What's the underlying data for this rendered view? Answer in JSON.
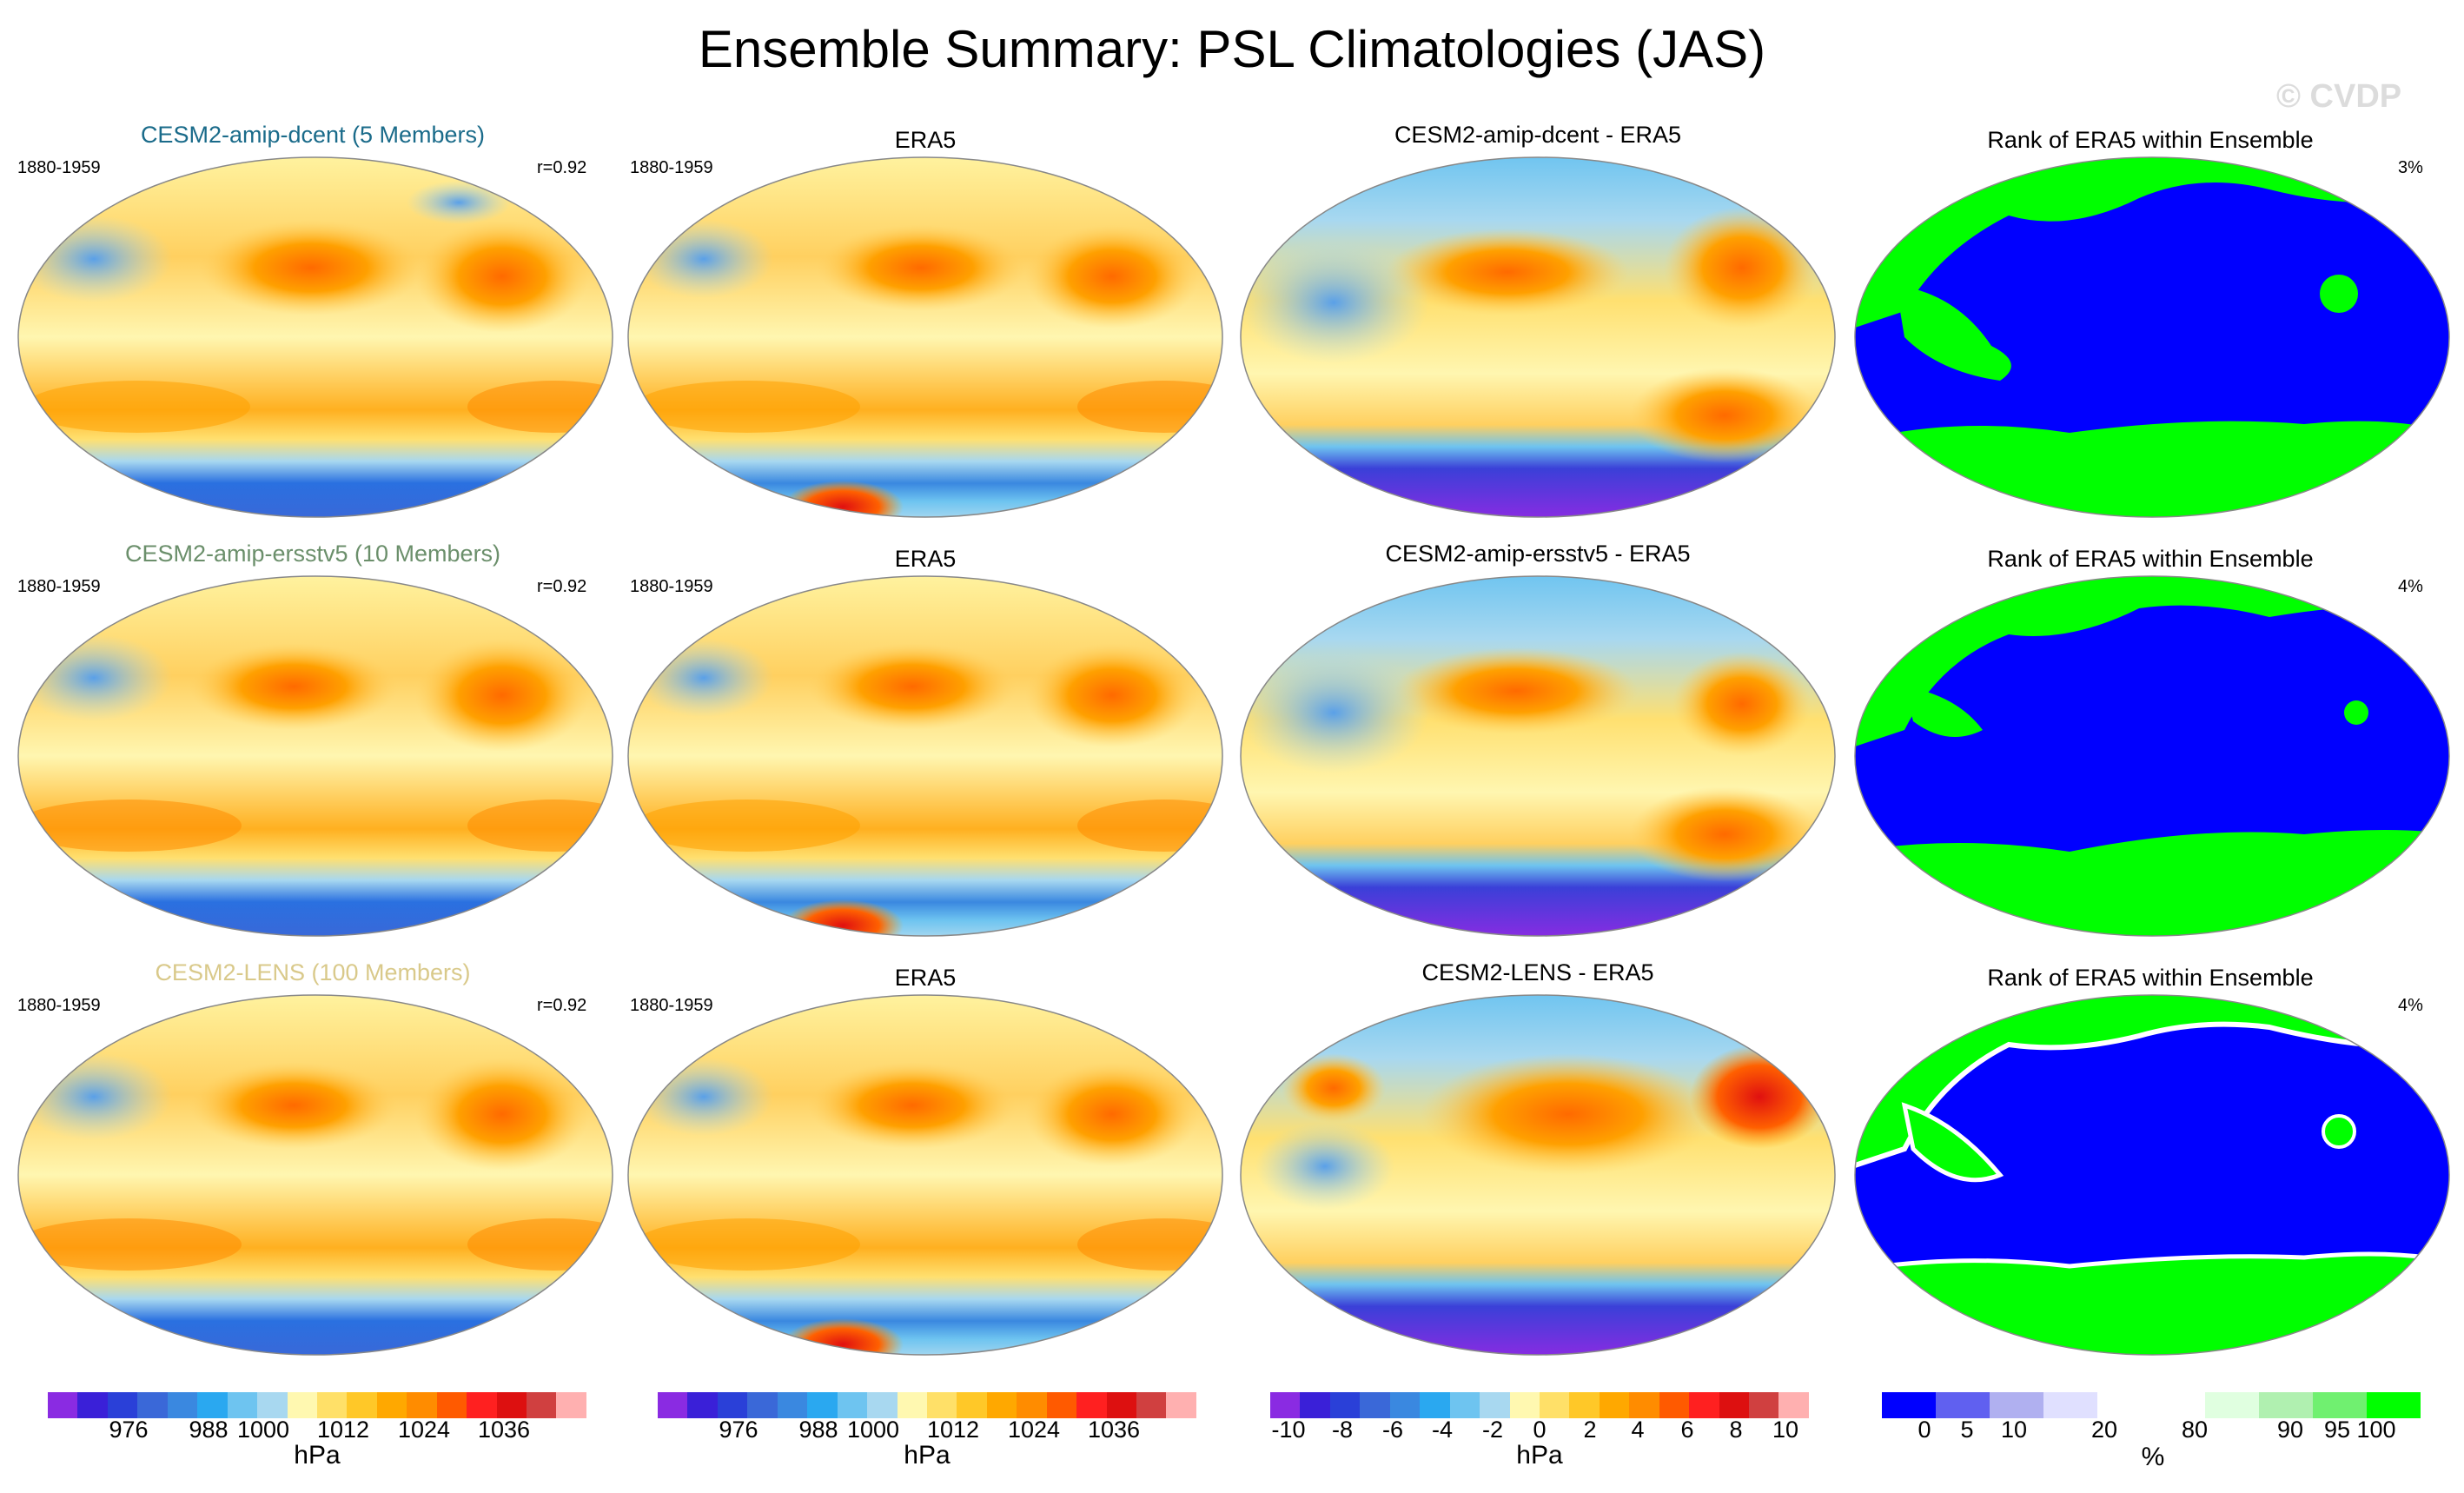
{
  "title": "Ensemble Summary: PSL Climatologies (JAS)",
  "watermark": "© CVDP",
  "rows": [
    {
      "model": {
        "title": "CESM2-amip-dcent (5 Members)",
        "color": "#1a6b8a",
        "period": "1880-1959",
        "r": "r=0.92"
      },
      "obs": {
        "title": "ERA5",
        "period": "1880-1959"
      },
      "diff": {
        "title": "CESM2-amip-dcent - ERA5"
      },
      "rank": {
        "title": "Rank of ERA5 within Ensemble",
        "pct": "3%"
      }
    },
    {
      "model": {
        "title": "CESM2-amip-ersstv5 (10 Members)",
        "color": "#6b8f6b",
        "period": "1880-1959",
        "r": "r=0.92"
      },
      "obs": {
        "title": "ERA5",
        "period": "1880-1959"
      },
      "diff": {
        "title": "CESM2-amip-ersstv5 - ERA5"
      },
      "rank": {
        "title": "Rank of ERA5 within Ensemble",
        "pct": "4%"
      }
    },
    {
      "model": {
        "title": "CESM2-LENS (100 Members)",
        "color": "#d9c98a",
        "period": "1880-1959",
        "r": "r=0.92"
      },
      "obs": {
        "title": "ERA5",
        "period": "1880-1959"
      },
      "diff": {
        "title": "CESM2-LENS - ERA5"
      },
      "rank": {
        "title": "Rank of ERA5 within Ensemble",
        "pct": "4%"
      }
    }
  ],
  "colorbars": [
    {
      "colors": [
        "#8a2be2",
        "#3a20d8",
        "#2a40d8",
        "#3a68d8",
        "#3a88e0",
        "#2aa8f0",
        "#6ec4f0",
        "#a8d8f0",
        "#fff8b0",
        "#ffe068",
        "#ffc828",
        "#ffa800",
        "#ff8c00",
        "#ff5a00",
        "#ff2020",
        "#dd1010",
        "#d04040",
        "#ffb0b0"
      ],
      "ticks": [
        "976",
        "988",
        "1000",
        "1012",
        "1024",
        "1036"
      ],
      "unit": "hPa"
    },
    {
      "colors": [
        "#8a2be2",
        "#3a20d8",
        "#2a40d8",
        "#3a68d8",
        "#3a88e0",
        "#2aa8f0",
        "#6ec4f0",
        "#a8d8f0",
        "#fff8b0",
        "#ffe068",
        "#ffc828",
        "#ffa800",
        "#ff8c00",
        "#ff5a00",
        "#ff2020",
        "#dd1010",
        "#d04040",
        "#ffb0b0"
      ],
      "ticks": [
        "976",
        "988",
        "1000",
        "1012",
        "1024",
        "1036"
      ],
      "unit": "hPa"
    },
    {
      "colors": [
        "#8a2be2",
        "#3a20d8",
        "#2a40d8",
        "#3a68d8",
        "#3a88e0",
        "#2aa8f0",
        "#6ec4f0",
        "#a8d8f0",
        "#fff8b0",
        "#ffe068",
        "#ffc828",
        "#ffa800",
        "#ff8c00",
        "#ff5a00",
        "#ff2020",
        "#dd1010",
        "#d04040",
        "#ffb0b0"
      ],
      "ticks": [
        "-10",
        "-8",
        "-6",
        "-4",
        "-2",
        "0",
        "2",
        "4",
        "6",
        "8",
        "10"
      ],
      "unit": "hPa"
    },
    {
      "colors": [
        "#0000ff",
        "#6060f0",
        "#b0b0f0",
        "#e0e0ff",
        "#ffffff",
        "#ffffff",
        "#e0ffe0",
        "#b0f0b0",
        "#70f070",
        "#00ff00"
      ],
      "ticks": [
        "0",
        "5",
        "10",
        "20",
        "80",
        "90",
        "95",
        "100"
      ],
      "unit": "%"
    }
  ]
}
